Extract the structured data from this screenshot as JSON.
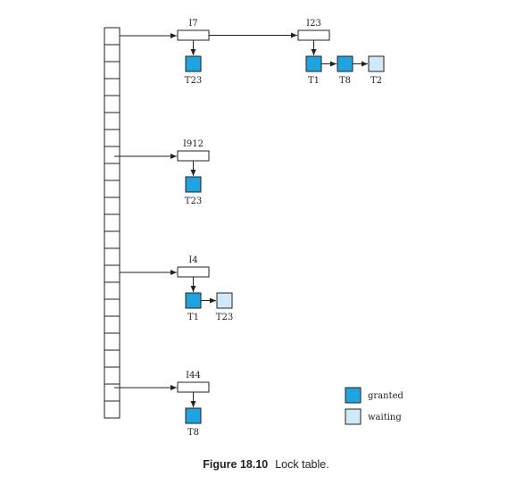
{
  "colors": {
    "granted": "#1ea4e0",
    "waiting": "#cfe9f8",
    "line": "#222222"
  },
  "items": [
    {
      "id": "I7",
      "queue": [
        {
          "txn": "T23",
          "state": "granted"
        }
      ]
    },
    {
      "id": "I23",
      "queue": [
        {
          "txn": "T1",
          "state": "granted"
        },
        {
          "txn": "T8",
          "state": "granted"
        },
        {
          "txn": "T2",
          "state": "waiting"
        }
      ]
    },
    {
      "id": "I912",
      "queue": [
        {
          "txn": "T23",
          "state": "granted"
        }
      ]
    },
    {
      "id": "I4",
      "queue": [
        {
          "txn": "T1",
          "state": "granted"
        },
        {
          "txn": "T23",
          "state": "waiting"
        }
      ]
    },
    {
      "id": "I44",
      "queue": [
        {
          "txn": "T8",
          "state": "granted"
        }
      ]
    }
  ],
  "legend": {
    "granted": "granted",
    "waiting": "waiting"
  },
  "caption": {
    "number": "Figure 18.10",
    "text": "Lock table."
  }
}
